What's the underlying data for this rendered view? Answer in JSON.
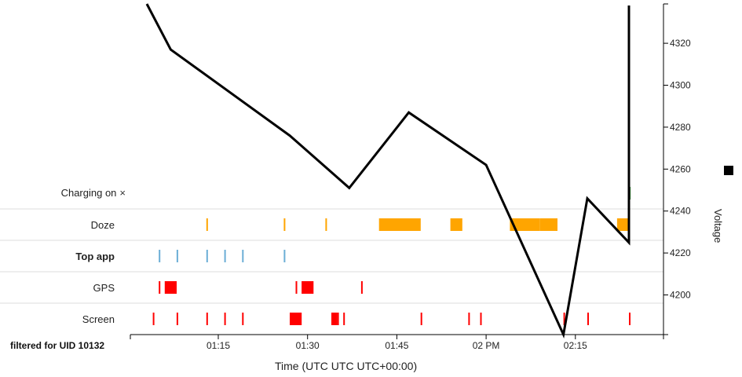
{
  "chart_data": {
    "type": "line",
    "xlabel": "Time (UTC UTC UTC+00:00)",
    "x_ticks": [
      "01:15",
      "01:30",
      "01:45",
      "02 PM",
      "02:15"
    ],
    "y_axis_label": "Voltage",
    "y_ticks": [
      4200,
      4220,
      4240,
      4260,
      4280,
      4300,
      4320
    ],
    "ylim": [
      4182,
      4340
    ],
    "series": [
      {
        "name": "Voltage",
        "color": "#000000",
        "points": [
          [
            "01:03",
            4342
          ],
          [
            "01:07",
            4317
          ],
          [
            "01:27",
            4276
          ],
          [
            "01:37",
            4251
          ],
          [
            "01:47",
            4287
          ],
          [
            "02:00",
            4262
          ],
          [
            "02:13",
            4181
          ],
          [
            "02:17",
            4246
          ],
          [
            "02:24",
            4225
          ],
          [
            "02:24",
            4338
          ]
        ]
      }
    ],
    "tracks": [
      {
        "name": "Charging on",
        "color": "#008000",
        "events": [
          [
            "02:24",
            "02:24"
          ]
        ]
      },
      {
        "name": "Doze",
        "color": "#ffa500",
        "events": [
          [
            "01:13",
            "01:13"
          ],
          [
            "01:26",
            "01:26"
          ],
          [
            "01:33",
            "01:33"
          ],
          [
            "01:42",
            "01:49"
          ],
          [
            "01:54",
            "01:56"
          ],
          [
            "02:04",
            "02:09"
          ],
          [
            "02:09",
            "02:12"
          ],
          [
            "02:22",
            "02:24"
          ]
        ]
      },
      {
        "name": "Top app",
        "color": "#6baed6",
        "events": [
          [
            "01:05",
            "01:05"
          ],
          [
            "01:08",
            "01:08"
          ],
          [
            "01:13",
            "01:13"
          ],
          [
            "01:16",
            "01:16"
          ],
          [
            "01:19",
            "01:19"
          ],
          [
            "01:26",
            "01:26"
          ]
        ]
      },
      {
        "name": "GPS",
        "color": "#ff0000",
        "events": [
          [
            "01:05",
            "01:05"
          ],
          [
            "01:06",
            "01:08"
          ],
          [
            "01:28",
            "01:28"
          ],
          [
            "01:29",
            "01:31"
          ],
          [
            "01:39",
            "01:39"
          ]
        ]
      },
      {
        "name": "Screen",
        "color": "#ff0000",
        "events": [
          [
            "01:04",
            "01:04"
          ],
          [
            "01:08",
            "01:08"
          ],
          [
            "01:13",
            "01:13"
          ],
          [
            "01:16",
            "01:16"
          ],
          [
            "01:19",
            "01:19"
          ],
          [
            "01:27",
            "01:29"
          ],
          [
            "01:34",
            "01:35"
          ],
          [
            "01:35",
            "01:35"
          ],
          [
            "01:36",
            "01:36"
          ],
          [
            "01:49",
            "01:49"
          ],
          [
            "01:57",
            "01:57"
          ],
          [
            "01:59",
            "01:59"
          ],
          [
            "02:13",
            "02:13"
          ],
          [
            "02:17",
            "02:17"
          ],
          [
            "02:24",
            "02:24"
          ]
        ]
      }
    ]
  },
  "labels": {
    "charging_on": "Charging on",
    "close_glyph": "×",
    "doze": "Doze",
    "top_app": "Top app",
    "gps": "GPS",
    "screen": "Screen",
    "filter": "filtered for UID 10132",
    "x_title": "Time (UTC UTC UTC+00:00)",
    "legend_voltage": "Voltage"
  }
}
